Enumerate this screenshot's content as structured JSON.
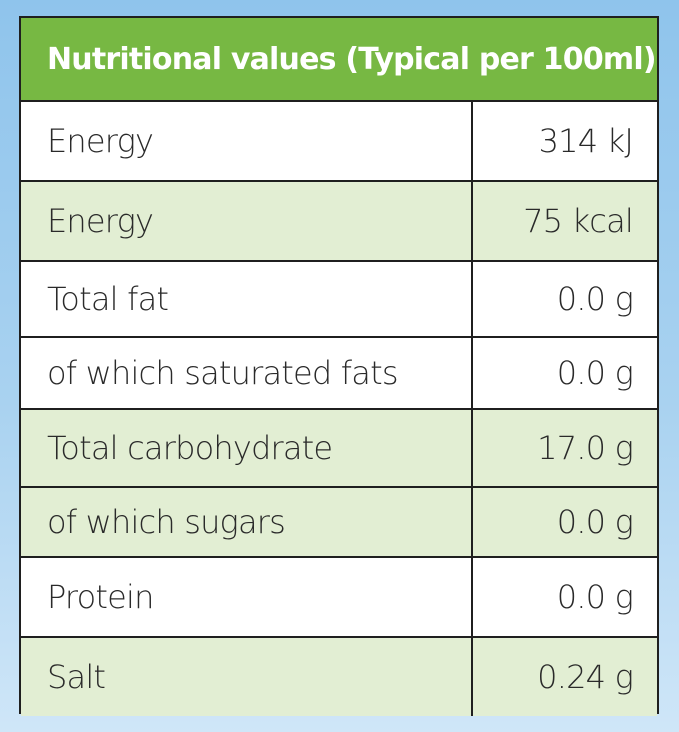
{
  "title": "Nutritional values (Typical per 100ml)",
  "rows": [
    {
      "name": "Energy",
      "value": "314 kJ",
      "shaded": false
    },
    {
      "name": "Energy",
      "value": "75 kcal",
      "shaded": true
    },
    {
      "name": "Total fat",
      "value": "0.0 g",
      "shaded": false
    },
    {
      "name": "of which saturated fats",
      "value": "0.0 g",
      "shaded": false
    },
    {
      "name": "Total carbohydrate",
      "value": "17.0 g",
      "shaded": true
    },
    {
      "name": "of which sugars",
      "value": "0.0 g",
      "shaded": true
    },
    {
      "name": "Protein",
      "value": "0.0 g",
      "shaded": false
    },
    {
      "name": "Salt",
      "value": "0.24 g",
      "shaded": true
    }
  ],
  "colors": {
    "header_green": "#77b843",
    "shaded_row": "#e2eed3",
    "background_blue": "#8fc4ec"
  }
}
